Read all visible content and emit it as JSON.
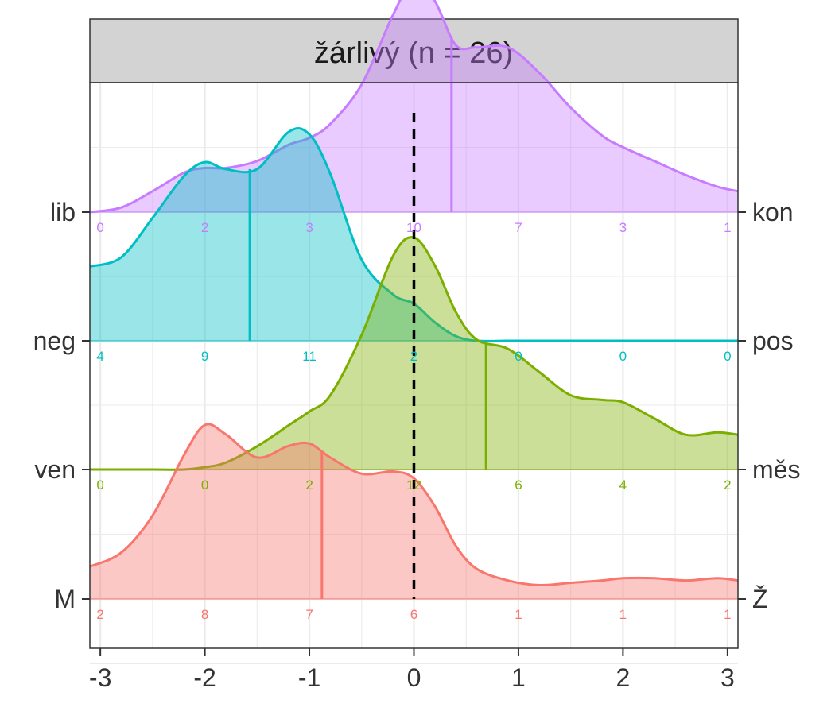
{
  "chart_data": {
    "type": "ridgeline-density",
    "title": "žárlivý (n = 26)",
    "xlabel": "",
    "ylabel": "",
    "xlim": [
      -3.1,
      3.1
    ],
    "x_ticks": [
      "-3",
      "-2",
      "-1",
      "0",
      "1",
      "2",
      "3"
    ],
    "reference_line_x": 0,
    "grid": true,
    "count_positions": [
      -3,
      -2,
      -1,
      0,
      1,
      2,
      3
    ],
    "series": [
      {
        "left_label": "M",
        "right_label": "Ž",
        "color": "#F8766D",
        "counts": [
          "2",
          "8",
          "7",
          "6",
          "1",
          "1",
          "1"
        ],
        "median": -0.88,
        "density_x": [
          -3.1,
          -2.8,
          -2.5,
          -2.2,
          -2.0,
          -1.8,
          -1.5,
          -1.2,
          -1.0,
          -0.8,
          -0.5,
          -0.2,
          0.0,
          0.2,
          0.4,
          0.6,
          0.9,
          1.2,
          1.5,
          1.8,
          2.0,
          2.3,
          2.6,
          2.9,
          3.1
        ],
        "density_y": [
          0.14,
          0.2,
          0.36,
          0.62,
          0.75,
          0.71,
          0.61,
          0.66,
          0.67,
          0.61,
          0.54,
          0.55,
          0.52,
          0.4,
          0.23,
          0.13,
          0.08,
          0.06,
          0.07,
          0.08,
          0.09,
          0.09,
          0.08,
          0.09,
          0.08
        ]
      },
      {
        "left_label": "ven",
        "right_label": "měs",
        "color": "#7CAE00",
        "counts": [
          "0",
          "0",
          "2",
          "12",
          "6",
          "4",
          "2"
        ],
        "median": 0.69,
        "density_x": [
          -3.1,
          -2.8,
          -2.5,
          -2.2,
          -2.0,
          -1.8,
          -1.5,
          -1.2,
          -1.0,
          -0.8,
          -0.5,
          -0.2,
          0.0,
          0.2,
          0.4,
          0.6,
          0.9,
          1.2,
          1.5,
          1.8,
          2.0,
          2.3,
          2.6,
          2.9,
          3.1
        ],
        "density_y": [
          0.0,
          0.0,
          0.0,
          0.0,
          0.01,
          0.03,
          0.1,
          0.19,
          0.25,
          0.32,
          0.58,
          0.92,
          1.0,
          0.88,
          0.68,
          0.56,
          0.52,
          0.42,
          0.32,
          0.3,
          0.29,
          0.22,
          0.15,
          0.16,
          0.15
        ]
      },
      {
        "left_label": "neg",
        "right_label": "pos",
        "color": "#00BFC4",
        "counts": [
          "4",
          "9",
          "11",
          "2",
          "0",
          "0",
          "0"
        ],
        "median": -1.57,
        "density_x": [
          -3.1,
          -2.8,
          -2.5,
          -2.2,
          -2.0,
          -1.8,
          -1.5,
          -1.2,
          -1.0,
          -0.8,
          -0.5,
          -0.2,
          0.0,
          0.2,
          0.4,
          0.6,
          0.9,
          1.2,
          1.5,
          1.8,
          2.0,
          2.3,
          2.6,
          2.9,
          3.1
        ],
        "density_y": [
          0.32,
          0.36,
          0.53,
          0.71,
          0.77,
          0.74,
          0.74,
          0.9,
          0.89,
          0.72,
          0.35,
          0.2,
          0.16,
          0.08,
          0.02,
          0.0,
          0.0,
          0.0,
          0.0,
          0.0,
          0.0,
          0.0,
          0.0,
          0.0,
          0.0
        ]
      },
      {
        "left_label": "lib",
        "right_label": "kon",
        "color": "#C77CFF",
        "counts": [
          "0",
          "2",
          "3",
          "10",
          "7",
          "3",
          "1"
        ],
        "median": 0.36,
        "density_x": [
          -3.1,
          -2.8,
          -2.5,
          -2.2,
          -2.0,
          -1.8,
          -1.5,
          -1.2,
          -1.0,
          -0.8,
          -0.5,
          -0.2,
          0.0,
          0.2,
          0.4,
          0.6,
          0.9,
          1.2,
          1.5,
          1.8,
          2.0,
          2.3,
          2.6,
          2.9,
          3.1
        ],
        "density_y": [
          0.0,
          0.02,
          0.09,
          0.17,
          0.19,
          0.19,
          0.22,
          0.29,
          0.32,
          0.38,
          0.55,
          0.85,
          1.0,
          0.91,
          0.72,
          0.71,
          0.71,
          0.6,
          0.45,
          0.33,
          0.28,
          0.22,
          0.16,
          0.11,
          0.09
        ]
      }
    ]
  }
}
